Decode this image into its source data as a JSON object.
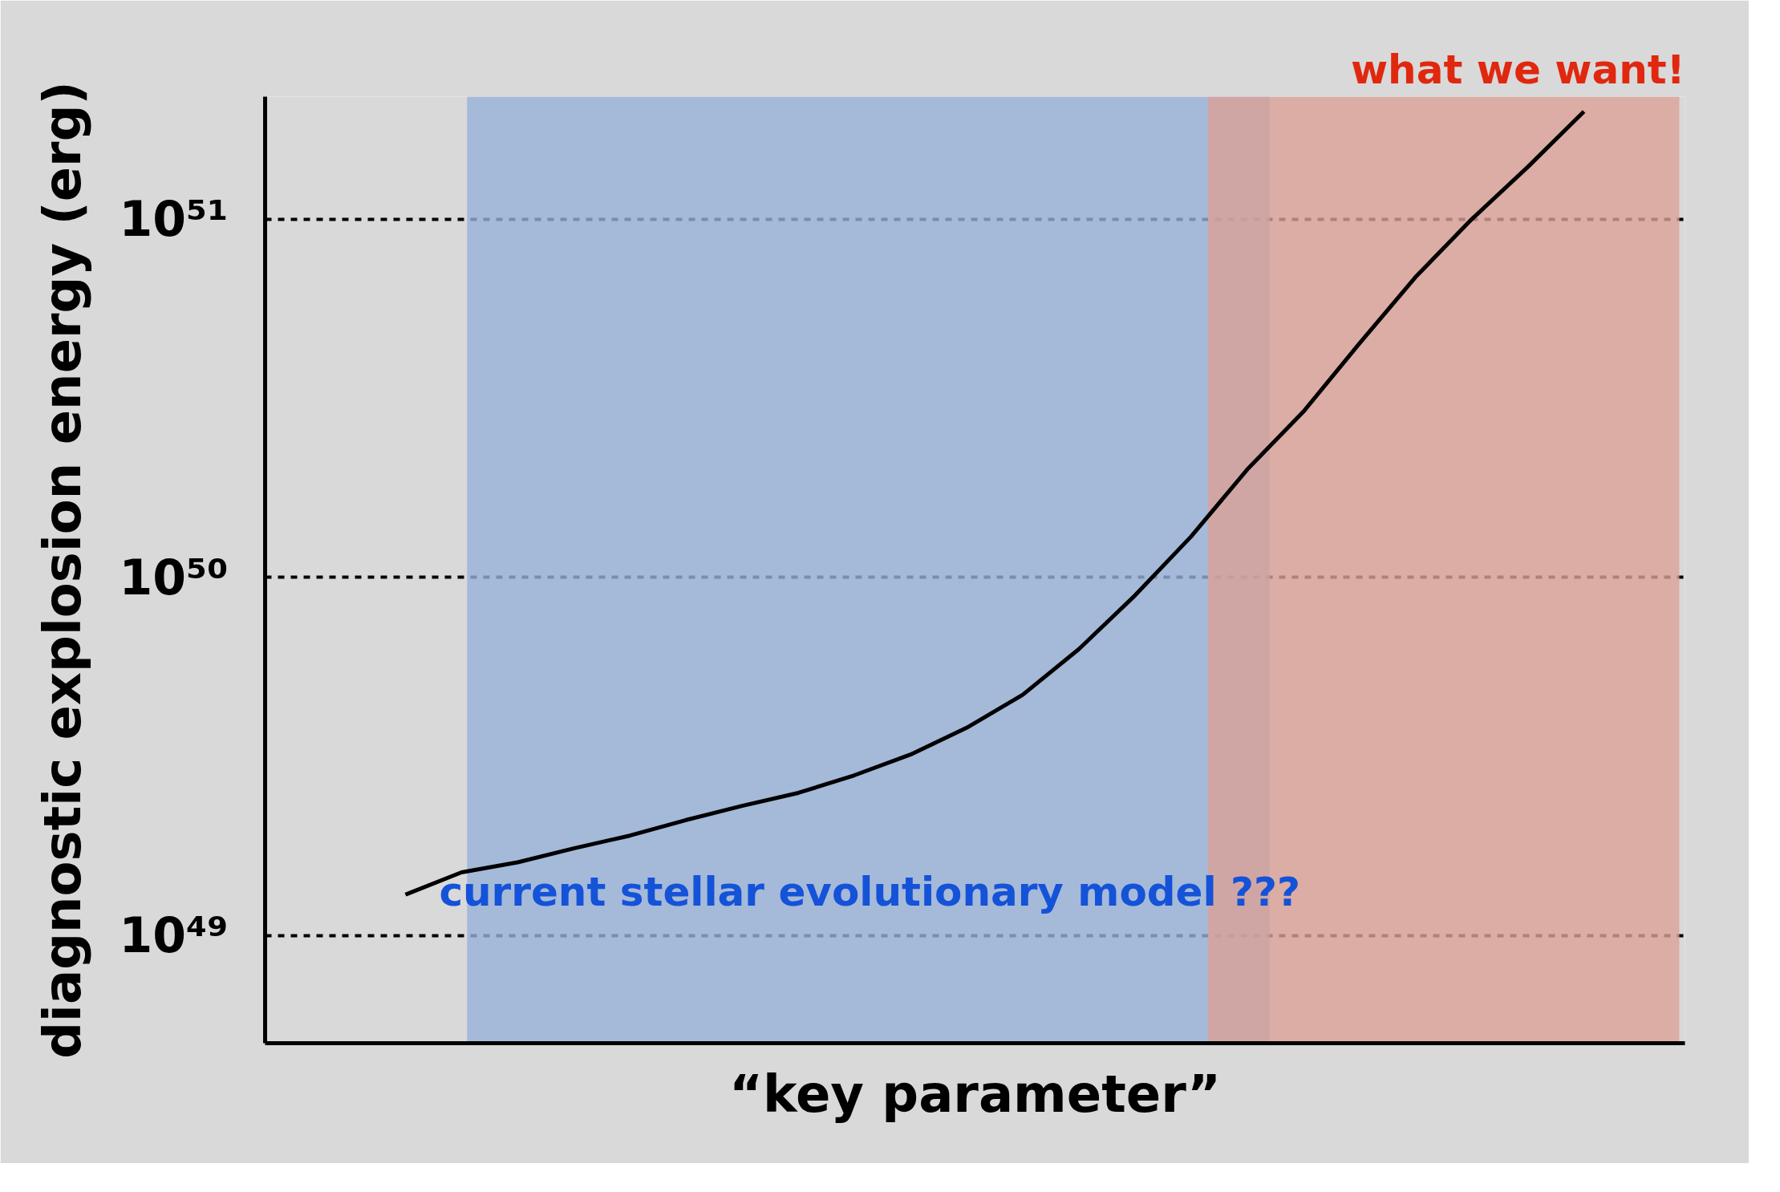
{
  "chart_data": {
    "type": "line",
    "ylabel": "diagnostic explosion energy (erg)",
    "xlabel": "“key parameter”",
    "categories": [
      null,
      null,
      null,
      null,
      null,
      null,
      null,
      null,
      null,
      null,
      null,
      null,
      null,
      null,
      null,
      null,
      null,
      null,
      null,
      null,
      null,
      null
    ],
    "series": [
      {
        "color": "#000000",
        "values": [
          1.3e+49,
          1.5e+49,
          1.6e+49,
          1.75e+49,
          1.9e+49,
          2.1e+49,
          2.3e+49,
          2.5e+49,
          2.8e+49,
          3.2e+49,
          3.8e+49,
          4.7e+49,
          6.3e+49,
          8.9e+49,
          1.3e+50,
          2e+50,
          2.9e+50,
          4.5e+50,
          6.9e+50,
          1e+51,
          1.4e+51,
          2e+51
        ]
      }
    ],
    "log": "y",
    "ylim": [
      5e+48,
      2.2e+51
    ],
    "yticks": [
      {
        "value": 1e+49,
        "label": "10⁴⁹"
      },
      {
        "value": 1e+50,
        "label": "10⁵⁰"
      },
      {
        "value": 1e+51,
        "label": "10⁵¹"
      }
    ],
    "grid": "y",
    "tick_labels": "y",
    "marker": "none",
    "line_style": "solid",
    "annotations": [
      "current stellar evolutionary model ???",
      "what we want!"
    ]
  }
}
